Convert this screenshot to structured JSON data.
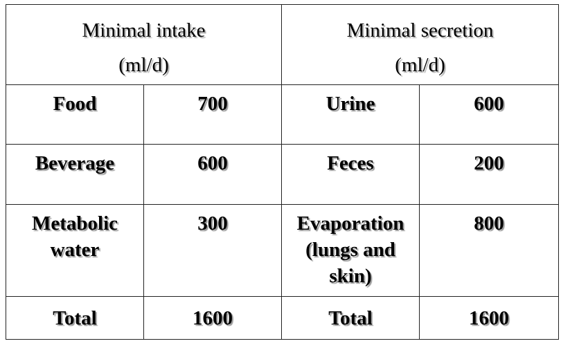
{
  "table": {
    "header": [
      [
        "Minimal intake",
        "(ml/d)"
      ],
      [
        "Minimal secretion",
        "(ml/d)"
      ]
    ],
    "rows": [
      [
        "Food",
        700,
        "Urine",
        600
      ],
      [
        "Beverage",
        600,
        "Feces",
        200
      ],
      [
        "Metabolic water",
        300,
        "Evaporation (lungs and skin)",
        800
      ],
      [
        "Total",
        1600,
        "Total",
        1600
      ]
    ]
  }
}
